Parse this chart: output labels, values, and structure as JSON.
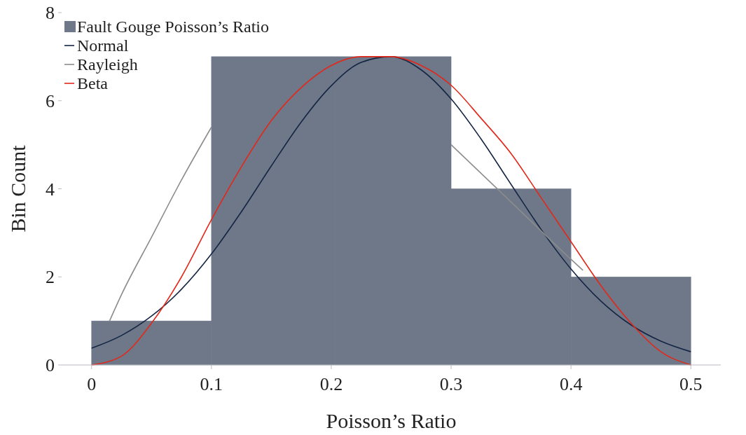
{
  "chart_data": {
    "type": "histogram",
    "xlabel": "Poisson’s Ratio",
    "ylabel": "Bin Count",
    "bins": [
      0,
      0.1,
      0.2,
      0.3,
      0.4,
      0.5
    ],
    "xlim": [
      -0.025,
      0.525
    ],
    "xticks": [
      0,
      0.1,
      0.2,
      0.3,
      0.4,
      0.5
    ],
    "ylim": [
      0,
      8
    ],
    "yticks": [
      0,
      2,
      4,
      6,
      8
    ],
    "grid": false,
    "legend": "top left",
    "series": [
      {
        "name": "Fault Gouge Poisson’s Ratio",
        "color": "#6e7889",
        "values": [
          1,
          7,
          7,
          4,
          2
        ]
      },
      {
        "name": "Normal",
        "type": "line",
        "color": "#152544",
        "x": [
          0,
          0.025,
          0.05,
          0.075,
          0.1,
          0.125,
          0.15,
          0.175,
          0.2,
          0.225,
          0.25,
          0.275,
          0.3,
          0.325,
          0.35,
          0.375,
          0.4,
          0.425,
          0.45,
          0.475,
          0.5
        ],
        "values": [
          0.38,
          0.67,
          1.11,
          1.72,
          2.52,
          3.48,
          4.52,
          5.52,
          6.34,
          6.87,
          7.0,
          6.7,
          6.04,
          5.13,
          4.1,
          3.08,
          2.18,
          1.45,
          0.91,
          0.54,
          0.3
        ]
      },
      {
        "name": "Rayleigh",
        "type": "line",
        "color": "#8c8c8c",
        "x": [
          0.015,
          0.025,
          0.05,
          0.075,
          0.1,
          0.2,
          0.3,
          0.35,
          0.4,
          0.41
        ],
        "values": [
          1.0,
          1.6,
          2.9,
          4.2,
          5.4,
          null,
          5.0,
          3.7,
          2.4,
          2.15
        ]
      },
      {
        "name": "Beta",
        "type": "line",
        "color": "#e2281a",
        "x": [
          0,
          0.025,
          0.05,
          0.075,
          0.1,
          0.125,
          0.15,
          0.175,
          0.2,
          0.225,
          0.25,
          0.275,
          0.3,
          0.325,
          0.35,
          0.375,
          0.4,
          0.425,
          0.45,
          0.475,
          0.5
        ],
        "values": [
          0,
          0.2,
          0.95,
          2.0,
          3.3,
          4.5,
          5.55,
          6.3,
          6.8,
          7.0,
          7.0,
          6.8,
          6.35,
          5.6,
          4.8,
          3.8,
          2.8,
          1.8,
          0.95,
          0.3,
          0
        ]
      }
    ]
  }
}
